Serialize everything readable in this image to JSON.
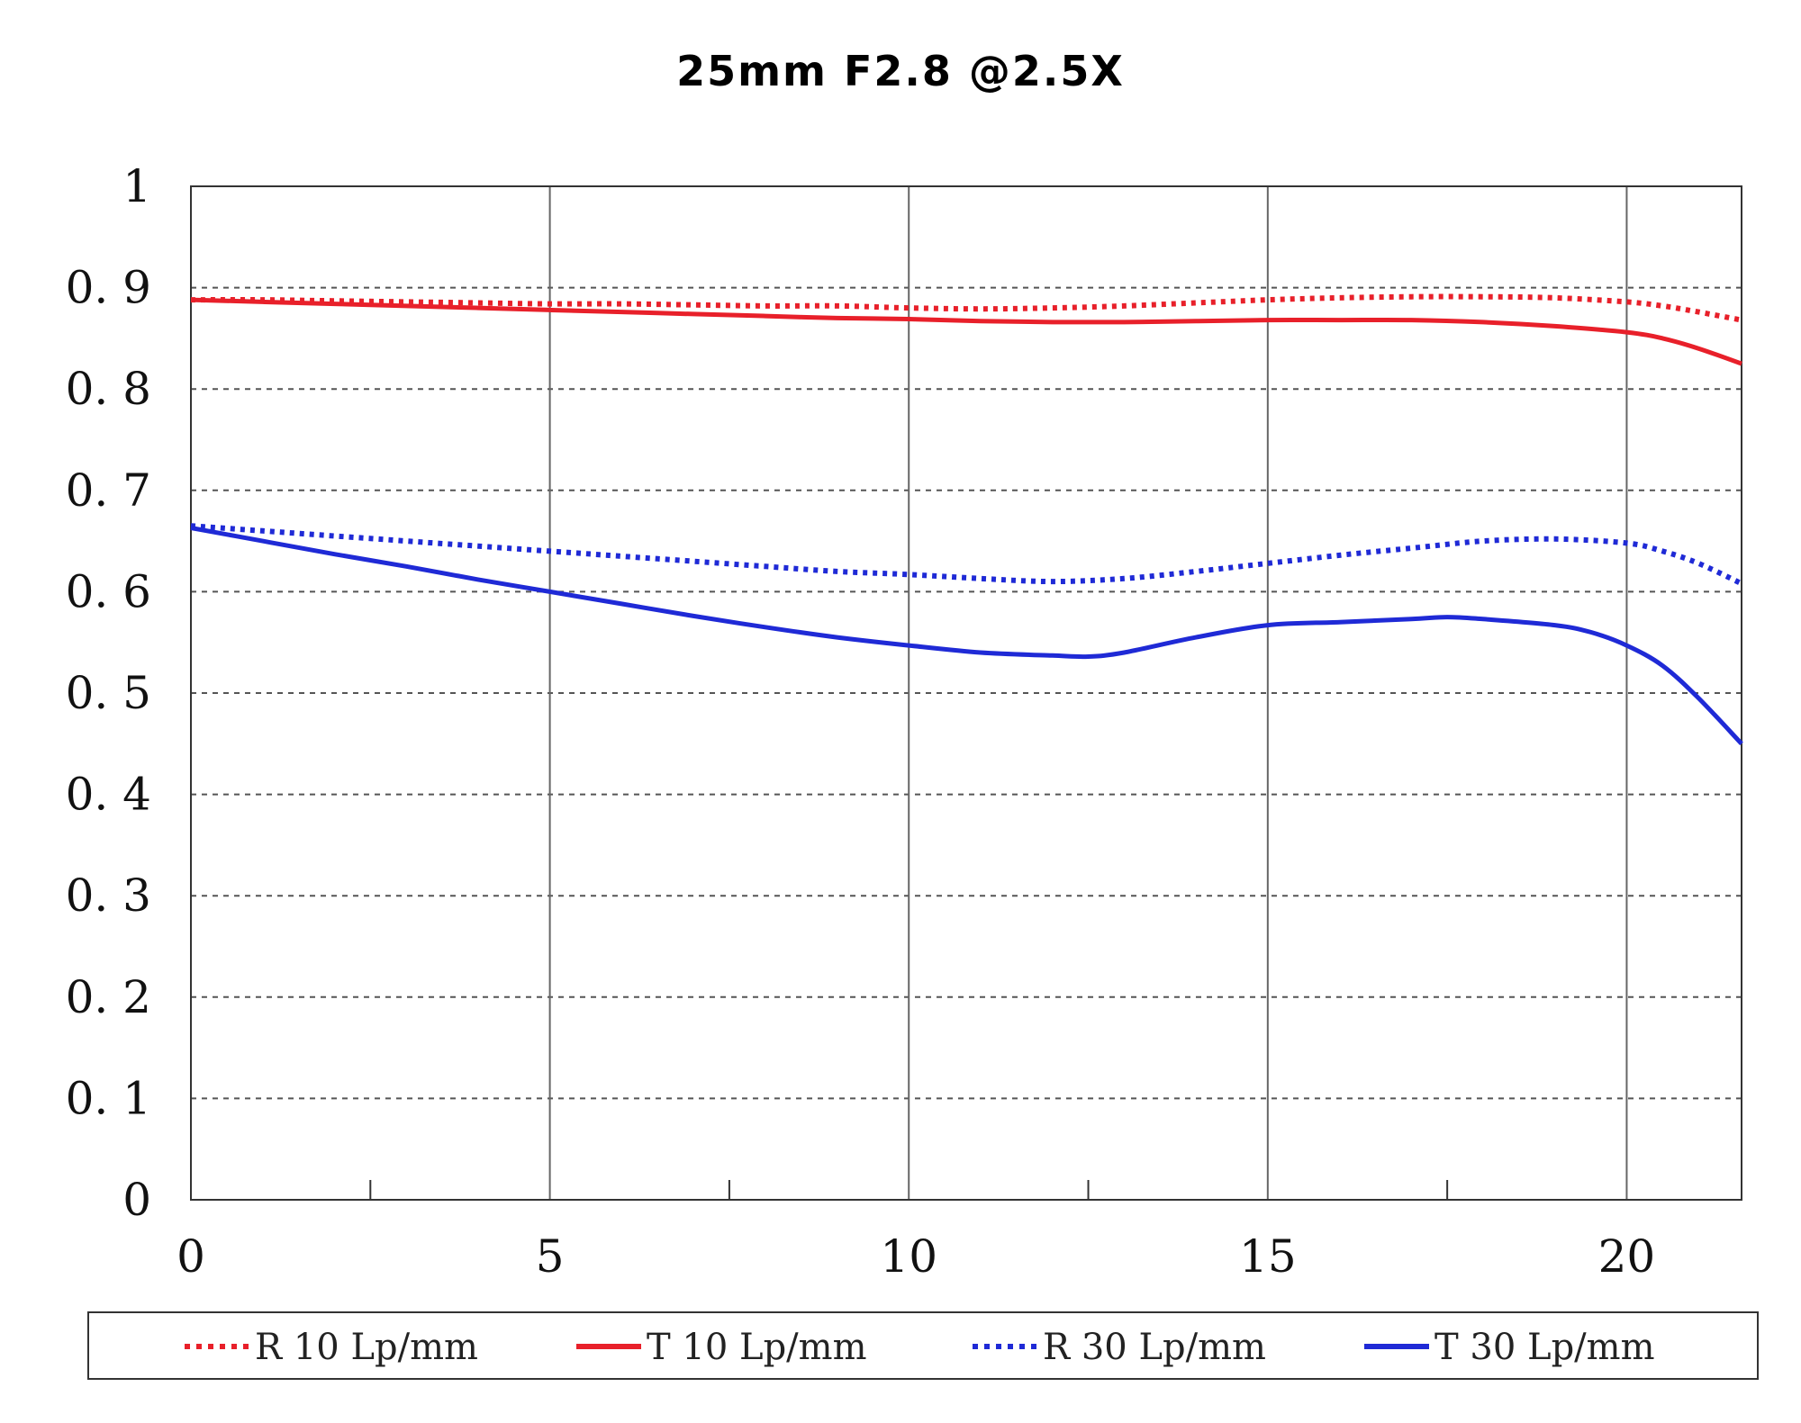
{
  "chart_data": {
    "type": "line",
    "title": "25mm F2.8  @2.5X",
    "xlabel": "",
    "ylabel": "",
    "xlim": [
      0,
      21.6
    ],
    "ylim": [
      0,
      1
    ],
    "x_ticks": [
      0,
      5,
      10,
      15,
      20
    ],
    "x_tick_labels": [
      "0",
      "5",
      "10",
      "15",
      "20"
    ],
    "y_ticks": [
      0,
      0.1,
      0.2,
      0.3,
      0.4,
      0.5,
      0.6,
      0.7,
      0.8,
      0.9,
      1
    ],
    "y_tick_labels": [
      "0",
      "0. 1",
      "0. 2",
      "0. 3",
      "0. 4",
      "0. 5",
      "0. 6",
      "0. 7",
      "0. 8",
      "0. 9",
      "1"
    ],
    "grid": {
      "vertical": "solid",
      "horizontal": "dashed"
    },
    "legend_position": "bottom",
    "series": [
      {
        "name": "R 10 Lp/mm",
        "color": "#e8202a",
        "style": "dotted",
        "x": [
          0,
          1,
          2,
          3,
          4,
          5,
          6,
          7,
          8,
          9,
          10,
          11,
          12,
          13,
          14,
          15,
          16,
          17,
          18,
          19,
          20,
          20.5,
          21,
          21.6
        ],
        "y": [
          0.888,
          0.888,
          0.887,
          0.886,
          0.885,
          0.884,
          0.884,
          0.883,
          0.882,
          0.882,
          0.88,
          0.879,
          0.88,
          0.882,
          0.885,
          0.888,
          0.89,
          0.891,
          0.891,
          0.89,
          0.886,
          0.882,
          0.876,
          0.868
        ]
      },
      {
        "name": "T 10 Lp/mm",
        "color": "#e8202a",
        "style": "solid",
        "x": [
          0,
          1,
          2,
          3,
          4,
          5,
          6,
          7,
          8,
          9,
          10,
          11,
          12,
          13,
          14,
          15,
          16,
          17,
          18,
          19,
          20,
          20.5,
          21,
          21.6
        ],
        "y": [
          0.888,
          0.886,
          0.884,
          0.882,
          0.88,
          0.878,
          0.876,
          0.874,
          0.872,
          0.87,
          0.869,
          0.867,
          0.866,
          0.866,
          0.867,
          0.868,
          0.868,
          0.868,
          0.866,
          0.862,
          0.856,
          0.85,
          0.84,
          0.825
        ]
      },
      {
        "name": "R 30 Lp/mm",
        "color": "#1f2ad6",
        "style": "dotted",
        "x": [
          0,
          1,
          2,
          3,
          4,
          5,
          6,
          7,
          8,
          9,
          10,
          11,
          12,
          13,
          14,
          15,
          16,
          17,
          18,
          19,
          20,
          20.5,
          21,
          21.6
        ],
        "y": [
          0.665,
          0.66,
          0.655,
          0.65,
          0.645,
          0.64,
          0.635,
          0.63,
          0.625,
          0.62,
          0.617,
          0.613,
          0.61,
          0.613,
          0.62,
          0.628,
          0.636,
          0.643,
          0.65,
          0.652,
          0.648,
          0.64,
          0.628,
          0.608
        ]
      },
      {
        "name": "T 30 Lp/mm",
        "color": "#1f2ad6",
        "style": "solid",
        "x": [
          0,
          1,
          2,
          3,
          4,
          5,
          6,
          7,
          8,
          9,
          10,
          11,
          12,
          12.5,
          13,
          14,
          15,
          16,
          17,
          17.5,
          18,
          19,
          19.5,
          20,
          20.5,
          21,
          21.6
        ],
        "y": [
          0.663,
          0.65,
          0.637,
          0.625,
          0.612,
          0.6,
          0.588,
          0.576,
          0.565,
          0.555,
          0.547,
          0.54,
          0.537,
          0.536,
          0.54,
          0.555,
          0.567,
          0.57,
          0.573,
          0.575,
          0.573,
          0.567,
          0.56,
          0.547,
          0.527,
          0.495,
          0.45
        ]
      }
    ]
  }
}
